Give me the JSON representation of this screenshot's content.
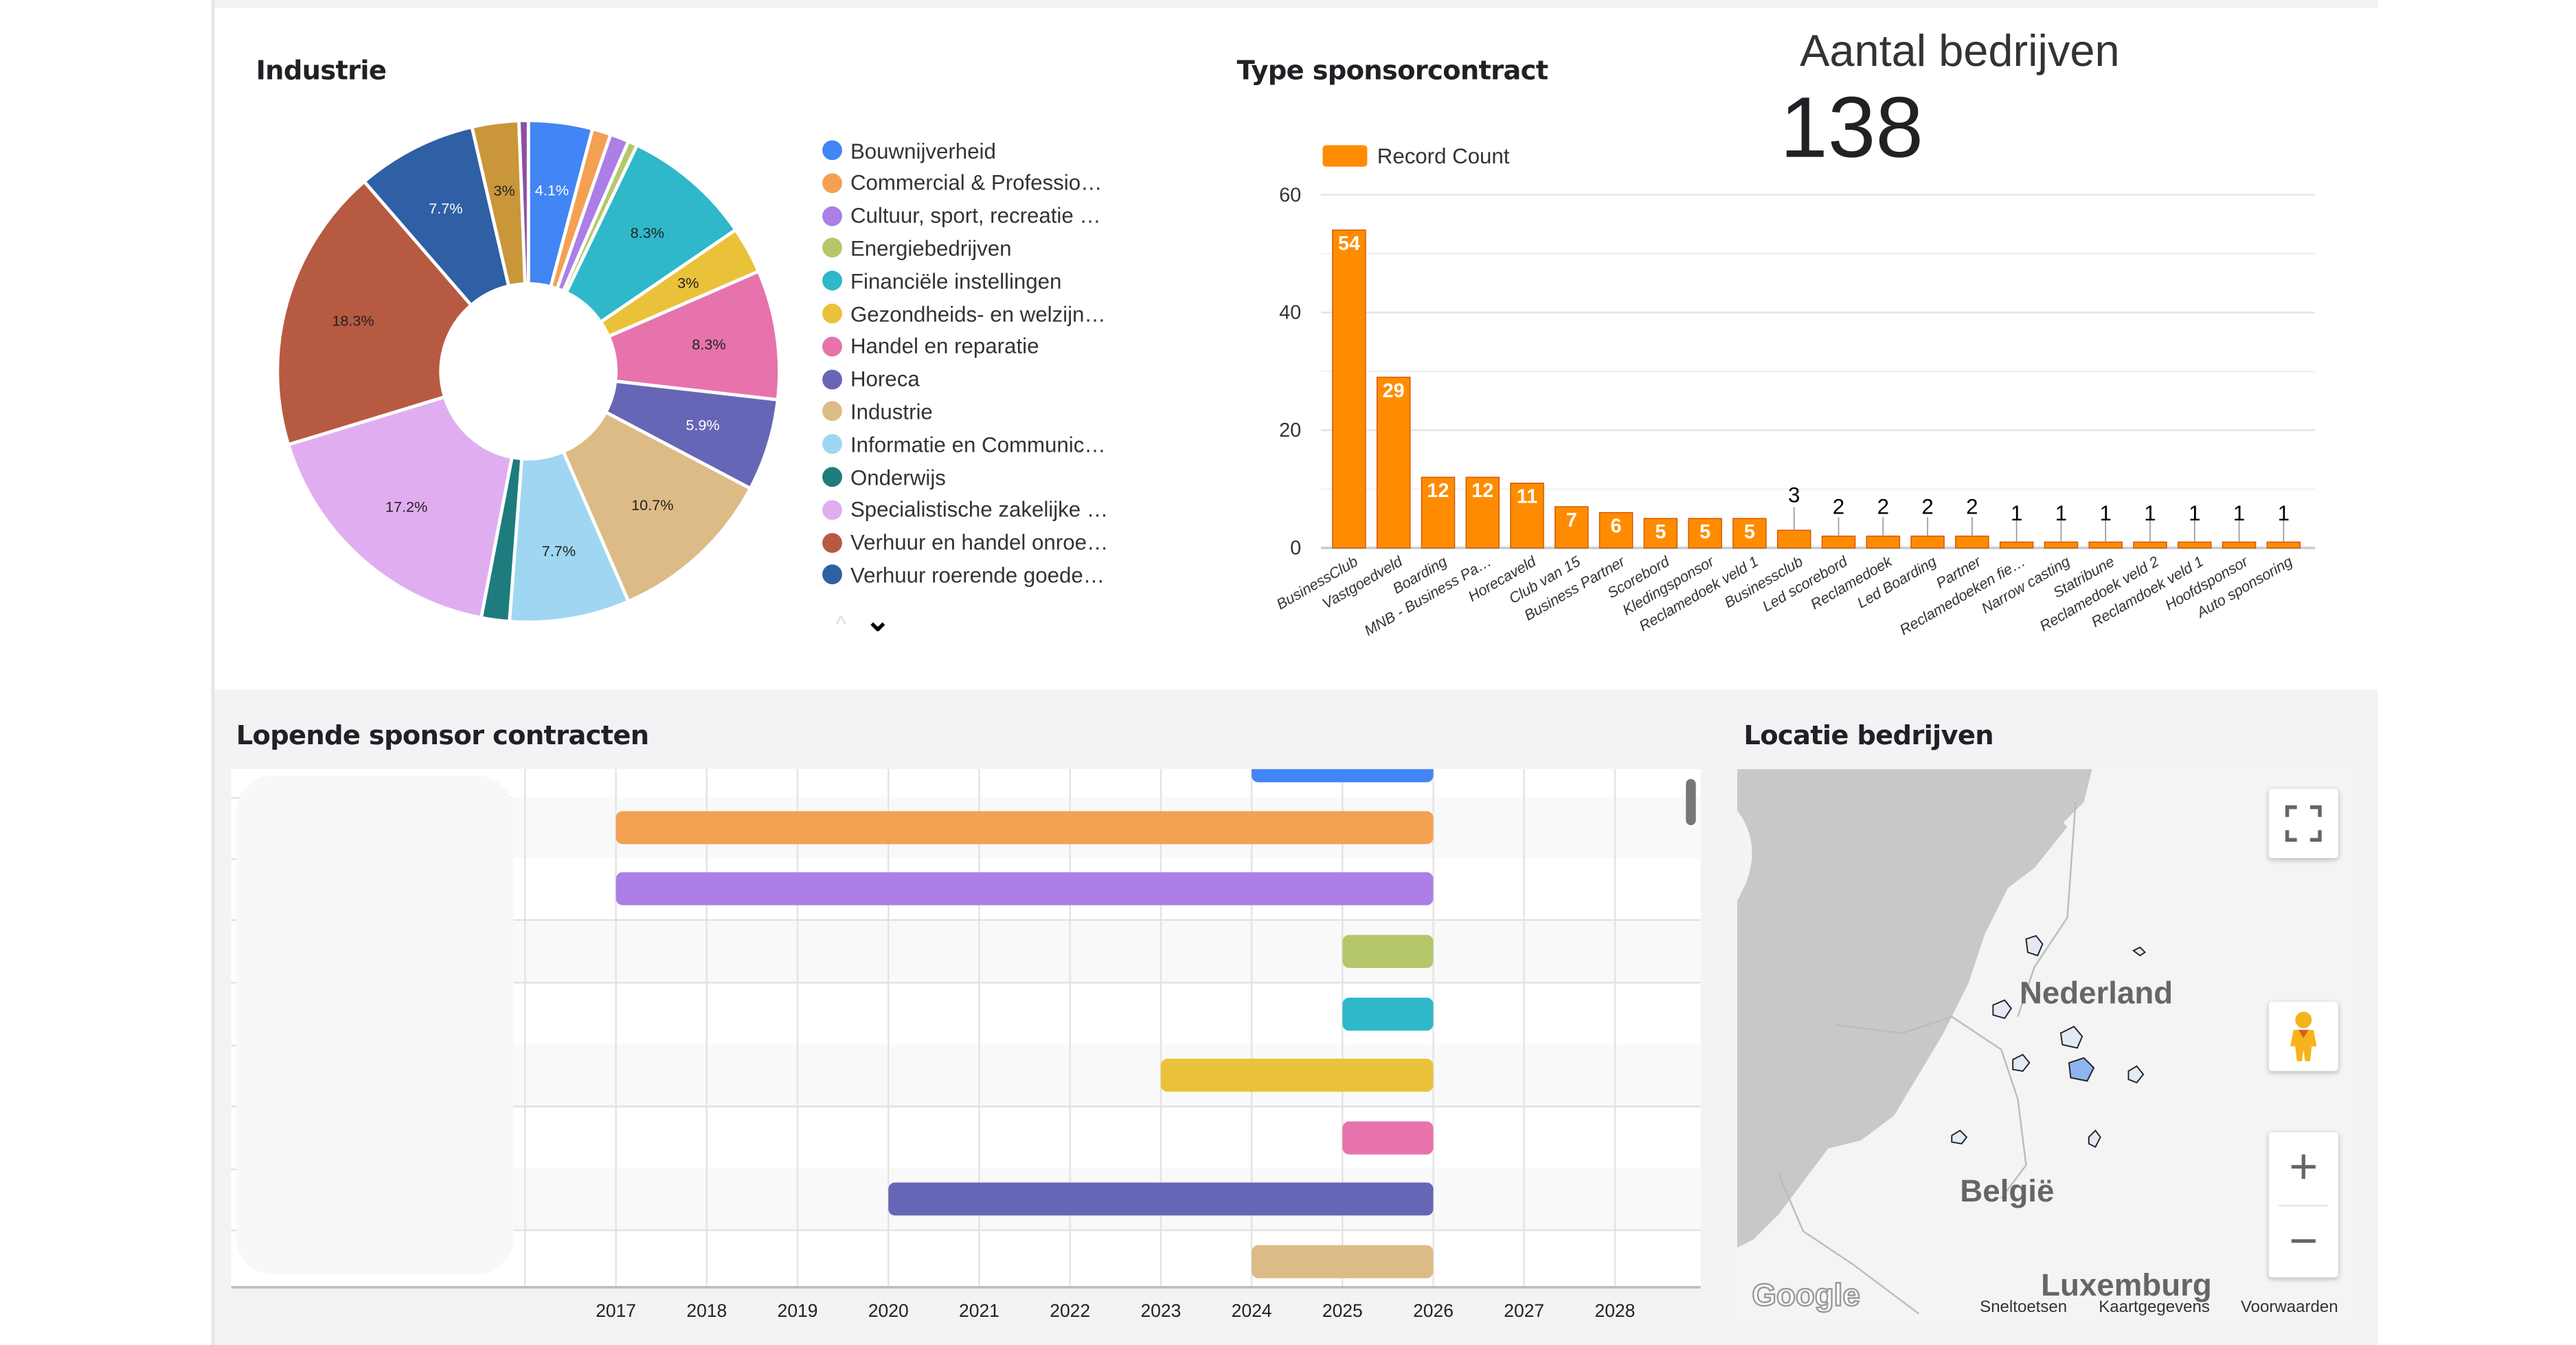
{
  "industrie": {
    "title": "Industrie",
    "chart_data": {
      "type": "pie",
      "donut": true,
      "slices": [
        {
          "name": "Bouwnijverheid",
          "value": 4.1,
          "label": "4.1%",
          "color": "#4285f4"
        },
        {
          "name": "Commercial & Professio…",
          "value": 1.2,
          "label": "",
          "color": "#f4a052"
        },
        {
          "name": "Cultuur, sport, recreatie …",
          "value": 1.2,
          "label": "",
          "color": "#ab7fe6"
        },
        {
          "name": "Energiebedrijven",
          "value": 0.6,
          "label": "",
          "color": "#b5c76b"
        },
        {
          "name": "Financiële instellingen",
          "value": 8.3,
          "label": "8.3%",
          "color": "#2eb8c9"
        },
        {
          "name": "Gezondheids- en welzijn…",
          "value": 3.0,
          "label": "3%",
          "color": "#eac23a"
        },
        {
          "name": "Handel en reparatie",
          "value": 8.3,
          "label": "8.3%",
          "color": "#e673ac"
        },
        {
          "name": "Horeca",
          "value": 5.9,
          "label": "5.9%",
          "color": "#6766b6"
        },
        {
          "name": "Industrie",
          "value": 10.7,
          "label": "10.7%",
          "color": "#ddbb86"
        },
        {
          "name": "Informatie en Communic…",
          "value": 7.7,
          "label": "7.7%",
          "color": "#9fd7f2"
        },
        {
          "name": "Onderwijs",
          "value": 1.8,
          "label": "",
          "color": "#1e7b7e"
        },
        {
          "name": "Specialistische zakelijke …",
          "value": 17.2,
          "label": "17.2%",
          "color": "#e0aef0"
        },
        {
          "name": "Verhuur en handel onroe…",
          "value": 18.3,
          "label": "18.3%",
          "color": "#b75a42"
        },
        {
          "name": "Verhuur roerende goede…",
          "value": 7.7,
          "label": "7.7%",
          "color": "#2f5fa4"
        },
        {
          "name": "",
          "value": 3.0,
          "label": "3%",
          "color": "#c9973a"
        },
        {
          "name": "",
          "value": 0.6,
          "label": "",
          "color": "#8e4fa0"
        }
      ]
    },
    "legend_nav": {
      "up": "^",
      "down": "⌄"
    }
  },
  "sponsor_type": {
    "title": "Type sponsorcontract",
    "chart_data": {
      "type": "bar",
      "series": [
        {
          "name": "Record Count",
          "color": "#ff8c00"
        }
      ],
      "categories": [
        "BusinessClub",
        "Vastgoedveld",
        "Boarding",
        "MNB - Business Pa…",
        "Horecaveld",
        "Club van 15",
        "Business Partner",
        "Scorebord",
        "Kledingsponsor",
        "Reclamedoek veld 1",
        "Businessclub",
        "Led scorebord",
        "Reclamedoek",
        "Led Boarding",
        "Partner",
        "Reclamedoeken fie…",
        "Narrow casting",
        "Statribune",
        "Reclamedoek veld 2",
        "Reclamdoek veld 1",
        "Hoofdsponsor",
        "Auto sponsoring"
      ],
      "values": [
        54,
        29,
        12,
        12,
        11,
        7,
        6,
        5,
        5,
        5,
        3,
        2,
        2,
        2,
        2,
        1,
        1,
        1,
        1,
        1,
        1,
        1
      ],
      "yticks": [
        "0",
        "20",
        "40",
        "60"
      ],
      "ylim": [
        0,
        60
      ],
      "grid": true,
      "legend": "top-left"
    }
  },
  "kpi": {
    "label": "Aantal bedrijven",
    "value": "138"
  },
  "contracts": {
    "title": "Lopende sponsor contracten",
    "chart_data": {
      "type": "timeline",
      "x_ticks": [
        "2017",
        "2018",
        "2019",
        "2020",
        "2021",
        "2022",
        "2023",
        "2024",
        "2025",
        "2026",
        "2027",
        "2028"
      ],
      "bars": [
        {
          "start": 2024.0,
          "end": 2026.0,
          "color": "#4285f4"
        },
        {
          "start": 2017.0,
          "end": 2026.0,
          "color": "#f4a052"
        },
        {
          "start": 2017.0,
          "end": 2026.0,
          "color": "#ab7fe6"
        },
        {
          "start": 2025.0,
          "end": 2026.0,
          "color": "#b5c76b"
        },
        {
          "start": 2025.0,
          "end": 2026.0,
          "color": "#2eb8c9"
        },
        {
          "start": 2023.0,
          "end": 2026.0,
          "color": "#eac23a"
        },
        {
          "start": 2025.0,
          "end": 2026.0,
          "color": "#e673ac"
        },
        {
          "start": 2020.0,
          "end": 2026.0,
          "color": "#6766b6"
        },
        {
          "start": 2024.0,
          "end": 2026.0,
          "color": "#ddbb86"
        }
      ]
    }
  },
  "map": {
    "title": "Locatie bedrijven",
    "labels": {
      "nl": "Nederland",
      "be": "België",
      "lu": "Luxemburg"
    },
    "logo": "Google",
    "footer": {
      "shortcuts": "Sneltoetsen",
      "mapdata": "Kaartgegevens",
      "terms": "Voorwaarden"
    },
    "controls": {
      "fullscreen": "fullscreen-icon",
      "pegman": "pegman-icon",
      "zoom_in": "+",
      "zoom_out": "−"
    }
  }
}
